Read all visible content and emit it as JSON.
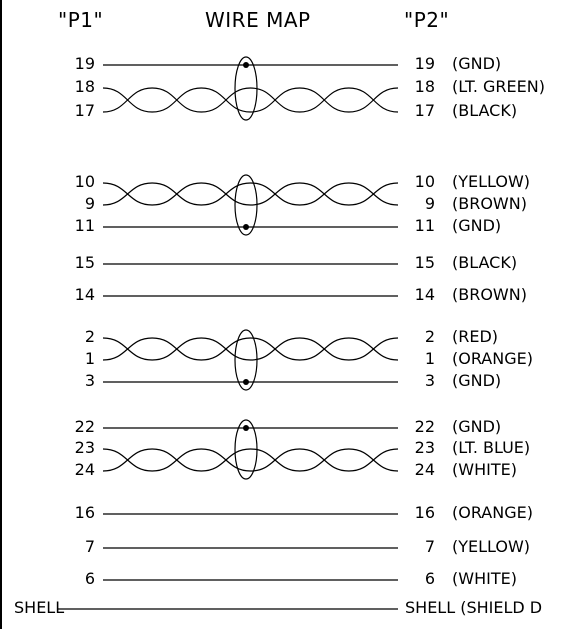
{
  "header": {
    "p1": "\"P1\"",
    "title": "WIRE MAP",
    "p2": "\"P2\""
  },
  "groups": [
    {
      "kind": "twisted",
      "shield": true,
      "rows": [
        {
          "left": "19",
          "right": "19",
          "color": "(GND)",
          "twisted": false
        },
        {
          "left": "18",
          "right": "18",
          "color": "(LT. GREEN)",
          "twisted": true
        },
        {
          "left": "17",
          "right": "17",
          "color": "(BLACK)",
          "twisted": true
        }
      ]
    },
    {
      "kind": "twisted",
      "shield": true,
      "rows": [
        {
          "left": "10",
          "right": "10",
          "color": "(YELLOW)",
          "twisted": true
        },
        {
          "left": "9",
          "right": "9",
          "color": "(BROWN)",
          "twisted": true
        },
        {
          "left": "11",
          "right": "11",
          "color": "(GND)",
          "twisted": false
        }
      ]
    },
    {
      "kind": "single",
      "rows": [
        {
          "left": "15",
          "right": "15",
          "color": "(BLACK)",
          "twisted": false
        }
      ]
    },
    {
      "kind": "single",
      "rows": [
        {
          "left": "14",
          "right": "14",
          "color": "(BROWN)",
          "twisted": false
        }
      ]
    },
    {
      "kind": "twisted",
      "shield": true,
      "rows": [
        {
          "left": "2",
          "right": "2",
          "color": "(RED)",
          "twisted": true
        },
        {
          "left": "1",
          "right": "1",
          "color": "(ORANGE)",
          "twisted": true
        },
        {
          "left": "3",
          "right": "3",
          "color": "(GND)",
          "twisted": false
        }
      ]
    },
    {
      "kind": "twisted",
      "shield": true,
      "rows": [
        {
          "left": "22",
          "right": "22",
          "color": "(GND)",
          "twisted": false
        },
        {
          "left": "23",
          "right": "23",
          "color": "(LT. BLUE)",
          "twisted": true
        },
        {
          "left": "24",
          "right": "24",
          "color": "(WHITE)",
          "twisted": true
        }
      ]
    },
    {
      "kind": "single",
      "rows": [
        {
          "left": "16",
          "right": "16",
          "color": "(ORANGE)",
          "twisted": false
        }
      ]
    },
    {
      "kind": "single",
      "rows": [
        {
          "left": "7",
          "right": "7",
          "color": "(YELLOW)",
          "twisted": false
        }
      ]
    },
    {
      "kind": "single",
      "rows": [
        {
          "left": "6",
          "right": "6",
          "color": "(WHITE)",
          "twisted": false
        }
      ]
    },
    {
      "kind": "single",
      "rows": [
        {
          "left": "SHELL",
          "right": "SHELL",
          "color": "(SHIELD D",
          "twisted": false
        }
      ]
    }
  ]
}
